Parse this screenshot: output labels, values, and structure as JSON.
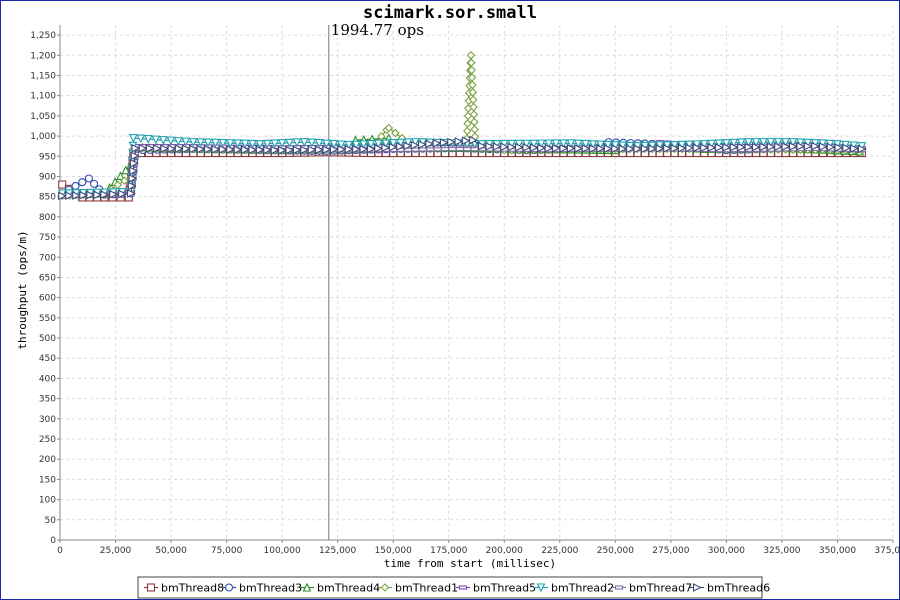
{
  "chart_data": {
    "type": "line",
    "title": "scimark.sor.small",
    "xlabel": "time from start (millisec)",
    "ylabel": "throughput (ops/m)",
    "xlim": [
      0,
      375000
    ],
    "ylim": [
      0,
      1275
    ],
    "xticks": [
      "0",
      "25,000",
      "50,000",
      "75,000",
      "100,000",
      "125,000",
      "150,000",
      "175,000",
      "200,000",
      "225,000",
      "250,000",
      "275,000",
      "300,000",
      "325,000",
      "350,000",
      "375,000"
    ],
    "yticks": [
      "0",
      "50",
      "100",
      "150",
      "200",
      "250",
      "300",
      "350",
      "400",
      "450",
      "500",
      "550",
      "600",
      "650",
      "700",
      "750",
      "800",
      "850",
      "900",
      "950",
      "1,000",
      "1,050",
      "1,100",
      "1,150",
      "1,200",
      "1,250"
    ],
    "grid": true,
    "legend_position": "bottom",
    "annotation": {
      "text": "1994.77 ops",
      "x": 121000
    },
    "series": [
      {
        "name": "bmThread8",
        "color": "#8b3a3a",
        "marker": "square",
        "x": [
          1000,
          10000,
          20000,
          31000,
          33000,
          40000,
          60000,
          80000,
          100000,
          120000,
          140000,
          160000,
          180000,
          200000,
          220000,
          240000,
          260000,
          280000,
          300000,
          320000,
          340000,
          361000
        ],
        "y": [
          880,
          848,
          848,
          848,
          958,
          958,
          958,
          958,
          958,
          960,
          958,
          958,
          958,
          958,
          958,
          958,
          958,
          958,
          958,
          958,
          958,
          958
        ]
      },
      {
        "name": "bmThread3",
        "color": "#3050b0",
        "marker": "circle",
        "x": [
          1000,
          13000,
          20000,
          32000,
          34000,
          60000,
          90000,
          120000,
          150000,
          180000,
          210000,
          240000,
          247000,
          270000,
          300000,
          330000,
          360000
        ],
        "y": [
          858,
          895,
          855,
          858,
          965,
          968,
          965,
          963,
          968,
          970,
          965,
          968,
          985,
          980,
          965,
          970,
          962
        ]
      },
      {
        "name": "bmThread4",
        "color": "#2e8b2e",
        "marker": "triangle-up",
        "x": [
          1000,
          20000,
          32000,
          34000,
          60000,
          100000,
          130000,
          133000,
          148000,
          149000,
          160000,
          190000,
          220000,
          250000,
          262000,
          290000,
          320000,
          360000
        ],
        "y": [
          855,
          858,
          930,
          972,
          970,
          968,
          970,
          990,
          995,
          975,
          972,
          970,
          968,
          965,
          980,
          968,
          972,
          962
        ]
      },
      {
        "name": "bmThread1",
        "color": "#7aa040",
        "marker": "diamond",
        "x": [
          1000,
          20000,
          32000,
          33000,
          60000,
          100000,
          140000,
          147000,
          148000,
          160000,
          183000,
          185000,
          187000,
          200000,
          250000,
          300000,
          350000,
          361000
        ],
        "y": [
          852,
          858,
          900,
          968,
          968,
          965,
          968,
          1015,
          1020,
          970,
          975,
          1200,
          980,
          965,
          968,
          968,
          965,
          965
        ]
      },
      {
        "name": "bmThread5",
        "color": "#7a4aa8",
        "marker": "hline",
        "x": [
          1000,
          20000,
          32000,
          34000,
          60000,
          100000,
          140000,
          180000,
          220000,
          260000,
          270000,
          300000,
          340000,
          361000
        ],
        "y": [
          855,
          860,
          862,
          975,
          975,
          972,
          975,
          972,
          970,
          975,
          985,
          975,
          978,
          970
        ]
      },
      {
        "name": "bmThread2",
        "color": "#20a0b0",
        "marker": "triangle-down",
        "x": [
          1000,
          20000,
          32000,
          33000,
          60000,
          90000,
          110000,
          130000,
          160000,
          190000,
          230000,
          260000,
          290000,
          310000,
          330000,
          350000,
          361000
        ],
        "y": [
          858,
          860,
          862,
          995,
          985,
          980,
          985,
          978,
          985,
          980,
          982,
          975,
          980,
          985,
          985,
          980,
          975
        ]
      },
      {
        "name": "bmThread7",
        "color": "#8070a0",
        "marker": "hline",
        "x": [
          1000,
          20000,
          32000,
          34000,
          60000,
          100000,
          140000,
          180000,
          220000,
          260000,
          300000,
          340000,
          361000
        ],
        "y": [
          850,
          855,
          858,
          968,
          968,
          965,
          965,
          968,
          965,
          968,
          965,
          968,
          965
        ]
      },
      {
        "name": "bmThread6",
        "color": "#404a78",
        "marker": "triangle-right",
        "x": [
          1000,
          20000,
          32000,
          34000,
          60000,
          100000,
          140000,
          186000,
          190000,
          220000,
          260000,
          300000,
          340000,
          361000
        ],
        "y": [
          852,
          855,
          858,
          970,
          968,
          965,
          968,
          990,
          975,
          970,
          968,
          972,
          975,
          968
        ]
      }
    ]
  }
}
